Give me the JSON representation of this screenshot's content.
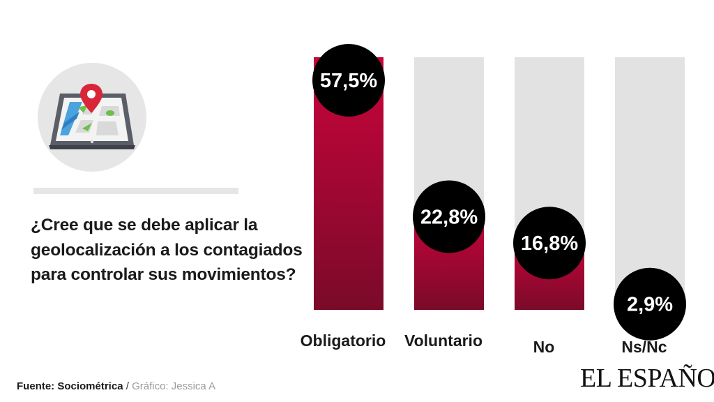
{
  "question": "¿Cree que se debe aplicar la geolocalización a los contagiados para controlar sus movimientos?",
  "source": {
    "label": "Fuente: Sociométrica",
    "separator": "/",
    "credit": "Gráfico: Jessica A"
  },
  "logo": "EL ESPAÑOL",
  "icon": "map-pin-tablet-icon",
  "colors": {
    "bar_top": "#c8043c",
    "bar_bottom": "#7a0a28",
    "track": "#e2e2e2",
    "label_bubble": "#000000",
    "text": "#1a1a1a"
  },
  "chart_data": {
    "type": "bar",
    "categories": [
      "Obligatorio",
      "Voluntario",
      "No",
      "Ns/Nc"
    ],
    "values": [
      57.5,
      22.8,
      16.8,
      2.9
    ],
    "value_labels": [
      "57,5%",
      "22,8%",
      "16,8%",
      "2,9%"
    ],
    "ylim": [
      0,
      57.5
    ],
    "grid": false,
    "legend": "none"
  }
}
